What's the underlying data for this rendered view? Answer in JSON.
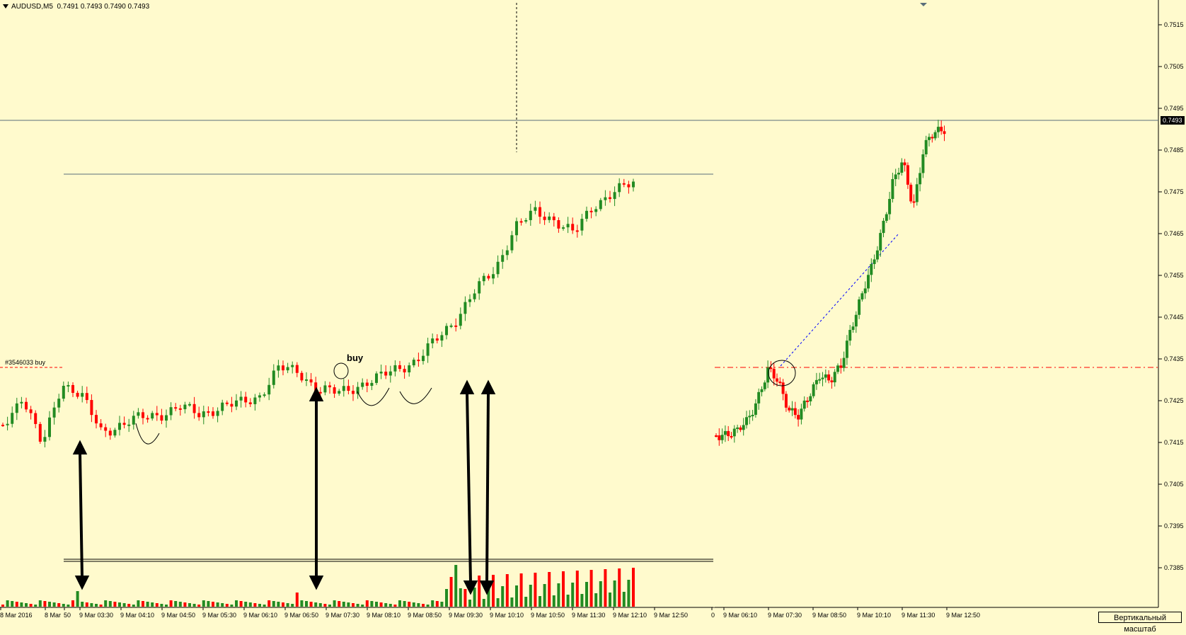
{
  "header": {
    "symbol": "AUDUSD,M5",
    "ohlc": "0.7491 0.7493 0.7490 0.7493"
  },
  "colors": {
    "bg": "#fffacd",
    "bull": "#228b22",
    "bear": "#ff0000"
  },
  "price_axis": {
    "ticks": [
      "0.7515",
      "0.7505",
      "0.7495",
      "0.7485",
      "0.7475",
      "0.7465",
      "0.7455",
      "0.7445",
      "0.7435",
      "0.7425",
      "0.7415",
      "0.7405",
      "0.7395",
      "0.7385"
    ],
    "current_price": "0.7493"
  },
  "time_axis_left": [
    "8 Mar 2016",
    "8 Mar",
    "50",
    "9 Mar 03:30",
    "9 Mar 04:10",
    "9 Mar 04:50",
    "9 Mar 05:30",
    "9 Mar 06:10",
    "9 Mar 06:50",
    "9 Mar 07:30",
    "9 Mar 08:10",
    "9 Mar 08:50",
    "9 Mar 09:30",
    "9 Mar 10:10",
    "9 Mar 10:50",
    "9 Mar 11:30",
    "9 Mar 12:10",
    "9 Mar 12:50"
  ],
  "time_axis_right": [
    "0",
    "9 Mar 06:10",
    "9 Mar 07:30",
    "9 Mar 08:50",
    "9 Mar 10:10",
    "9 Mar 11:30",
    "9 Mar 12:50"
  ],
  "order_label": "#3546033 buy",
  "annotation_buy": "buy",
  "scale_button": "Вертикальный масштаб"
}
